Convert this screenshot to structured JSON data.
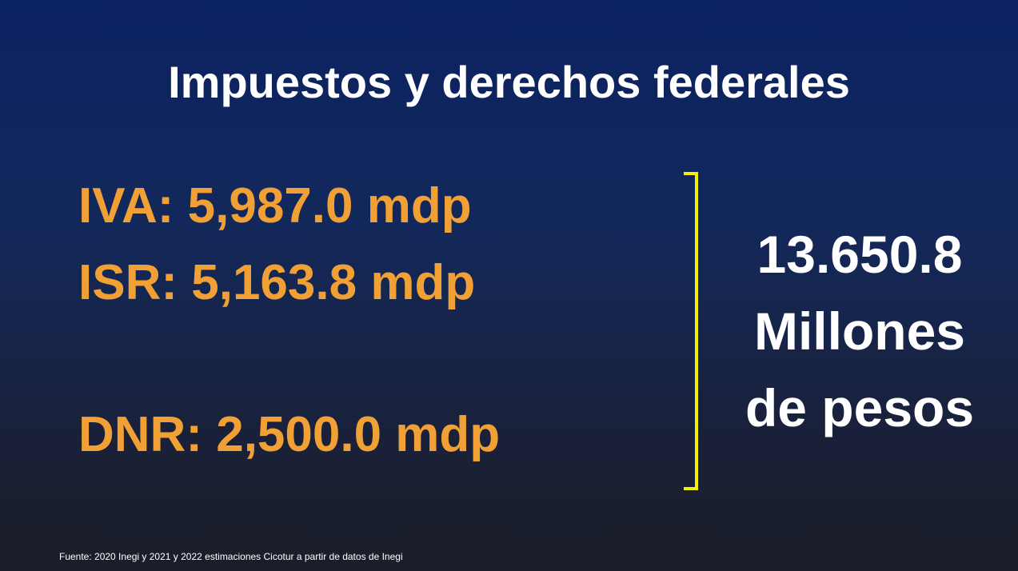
{
  "title": "Impuestos y derechos federales",
  "items": [
    {
      "label": "IVA:",
      "value": "5,987.0 mdp"
    },
    {
      "label": "ISR:",
      "value": "5,163.8 mdp"
    },
    {
      "label": "DNR:",
      "value": "2,500.0 mdp"
    }
  ],
  "total": {
    "amount": "13.650.8",
    "lines": [
      "Millones",
      "de pesos"
    ]
  },
  "source": "Fuente: 2020 Inegi y 2021 y 2022 estimaciones Cicotur a partir de datos de Inegi"
}
